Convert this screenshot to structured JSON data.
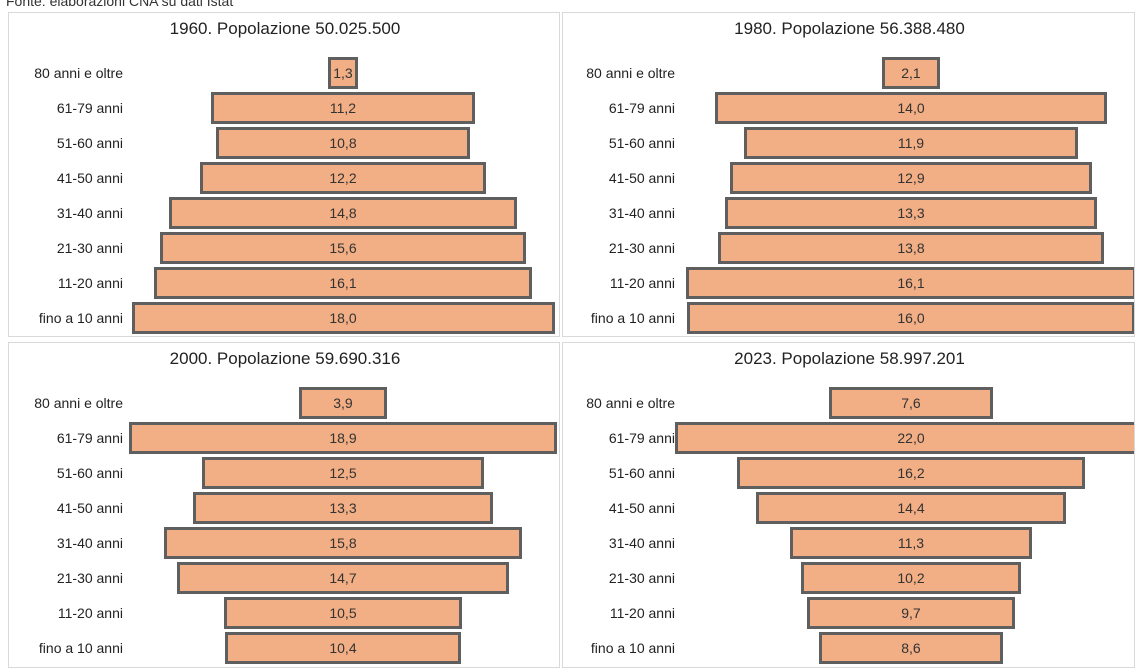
{
  "source_note": "Fonte: elaborazioni CNA su dati Istat",
  "chart_data": [
    {
      "type": "bar",
      "title": "1960. Popolazione 50.025.500",
      "categories": [
        "80 anni e oltre",
        "61-79 anni",
        "51-60 anni",
        "41-50 anni",
        "31-40 anni",
        "21-30 anni",
        "11-20 anni",
        "fino a 10 anni"
      ],
      "values": [
        1.3,
        11.2,
        10.8,
        12.2,
        14.8,
        15.6,
        16.1,
        18.0
      ],
      "value_labels": [
        "1,3",
        "11,2",
        "10,8",
        "12,2",
        "14,8",
        "15,6",
        "16,1",
        "18,0"
      ]
    },
    {
      "type": "bar",
      "title": "1980. Popolazione 56.388.480",
      "categories": [
        "80 anni e oltre",
        "61-79 anni",
        "51-60 anni",
        "41-50 anni",
        "31-40 anni",
        "21-30 anni",
        "11-20 anni",
        "fino a 10 anni"
      ],
      "values": [
        2.1,
        14.0,
        11.9,
        12.9,
        13.3,
        13.8,
        16.1,
        16.0
      ],
      "value_labels": [
        "2,1",
        "14,0",
        "11,9",
        "12,9",
        "13,3",
        "13,8",
        "16,1",
        "16,0"
      ]
    },
    {
      "type": "bar",
      "title": "2000. Popolazione 59.690.316",
      "categories": [
        "80 anni e oltre",
        "61-79 anni",
        "51-60 anni",
        "41-50 anni",
        "31-40 anni",
        "21-30 anni",
        "11-20 anni",
        "fino a 10 anni"
      ],
      "values": [
        3.9,
        18.9,
        12.5,
        13.3,
        15.8,
        14.7,
        10.5,
        10.4
      ],
      "value_labels": [
        "3,9",
        "18,9",
        "12,5",
        "13,3",
        "15,8",
        "14,7",
        "10,5",
        "10,4"
      ]
    },
    {
      "type": "bar",
      "title": "2023. Popolazione 58.997.201",
      "categories": [
        "80 anni e oltre",
        "61-79 anni",
        "51-60 anni",
        "41-50 anni",
        "31-40 anni",
        "21-30 anni",
        "11-20 anni",
        "fino a 10 anni"
      ],
      "values": [
        7.6,
        22.0,
        16.2,
        14.4,
        11.3,
        10.2,
        9.7,
        8.6
      ],
      "value_labels": [
        "7,6",
        "22,0",
        "16,2",
        "14,4",
        "11,3",
        "10,2",
        "9,7",
        "8,6"
      ]
    }
  ],
  "colors": {
    "bar_fill": "#f2ae84",
    "bar_border": "#5f5f5f",
    "panel_border": "#d9d9d9"
  }
}
